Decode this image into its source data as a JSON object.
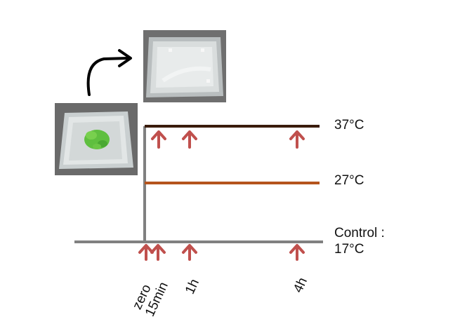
{
  "temperatures": {
    "high": "37°C",
    "mid": "27°C",
    "control_line1": "Control :",
    "control_line2": "17°C"
  },
  "time_points": [
    "zero",
    "15min",
    "1h",
    "4h"
  ],
  "colors": {
    "line_37": "#3a1c0c",
    "line_27": "#b5541c",
    "line_control": "#808080",
    "vertical": "#808080",
    "arrow": "#c0504d",
    "curved_arrow": "#000000"
  },
  "icons": {
    "petri_dish_with_plant": "petri-dish-seedling-photo",
    "petri_dish_empty": "petri-dish-lid-photo",
    "transfer_arrow": "curved-arrow-icon",
    "sampling_arrow": "up-arrow-icon"
  }
}
